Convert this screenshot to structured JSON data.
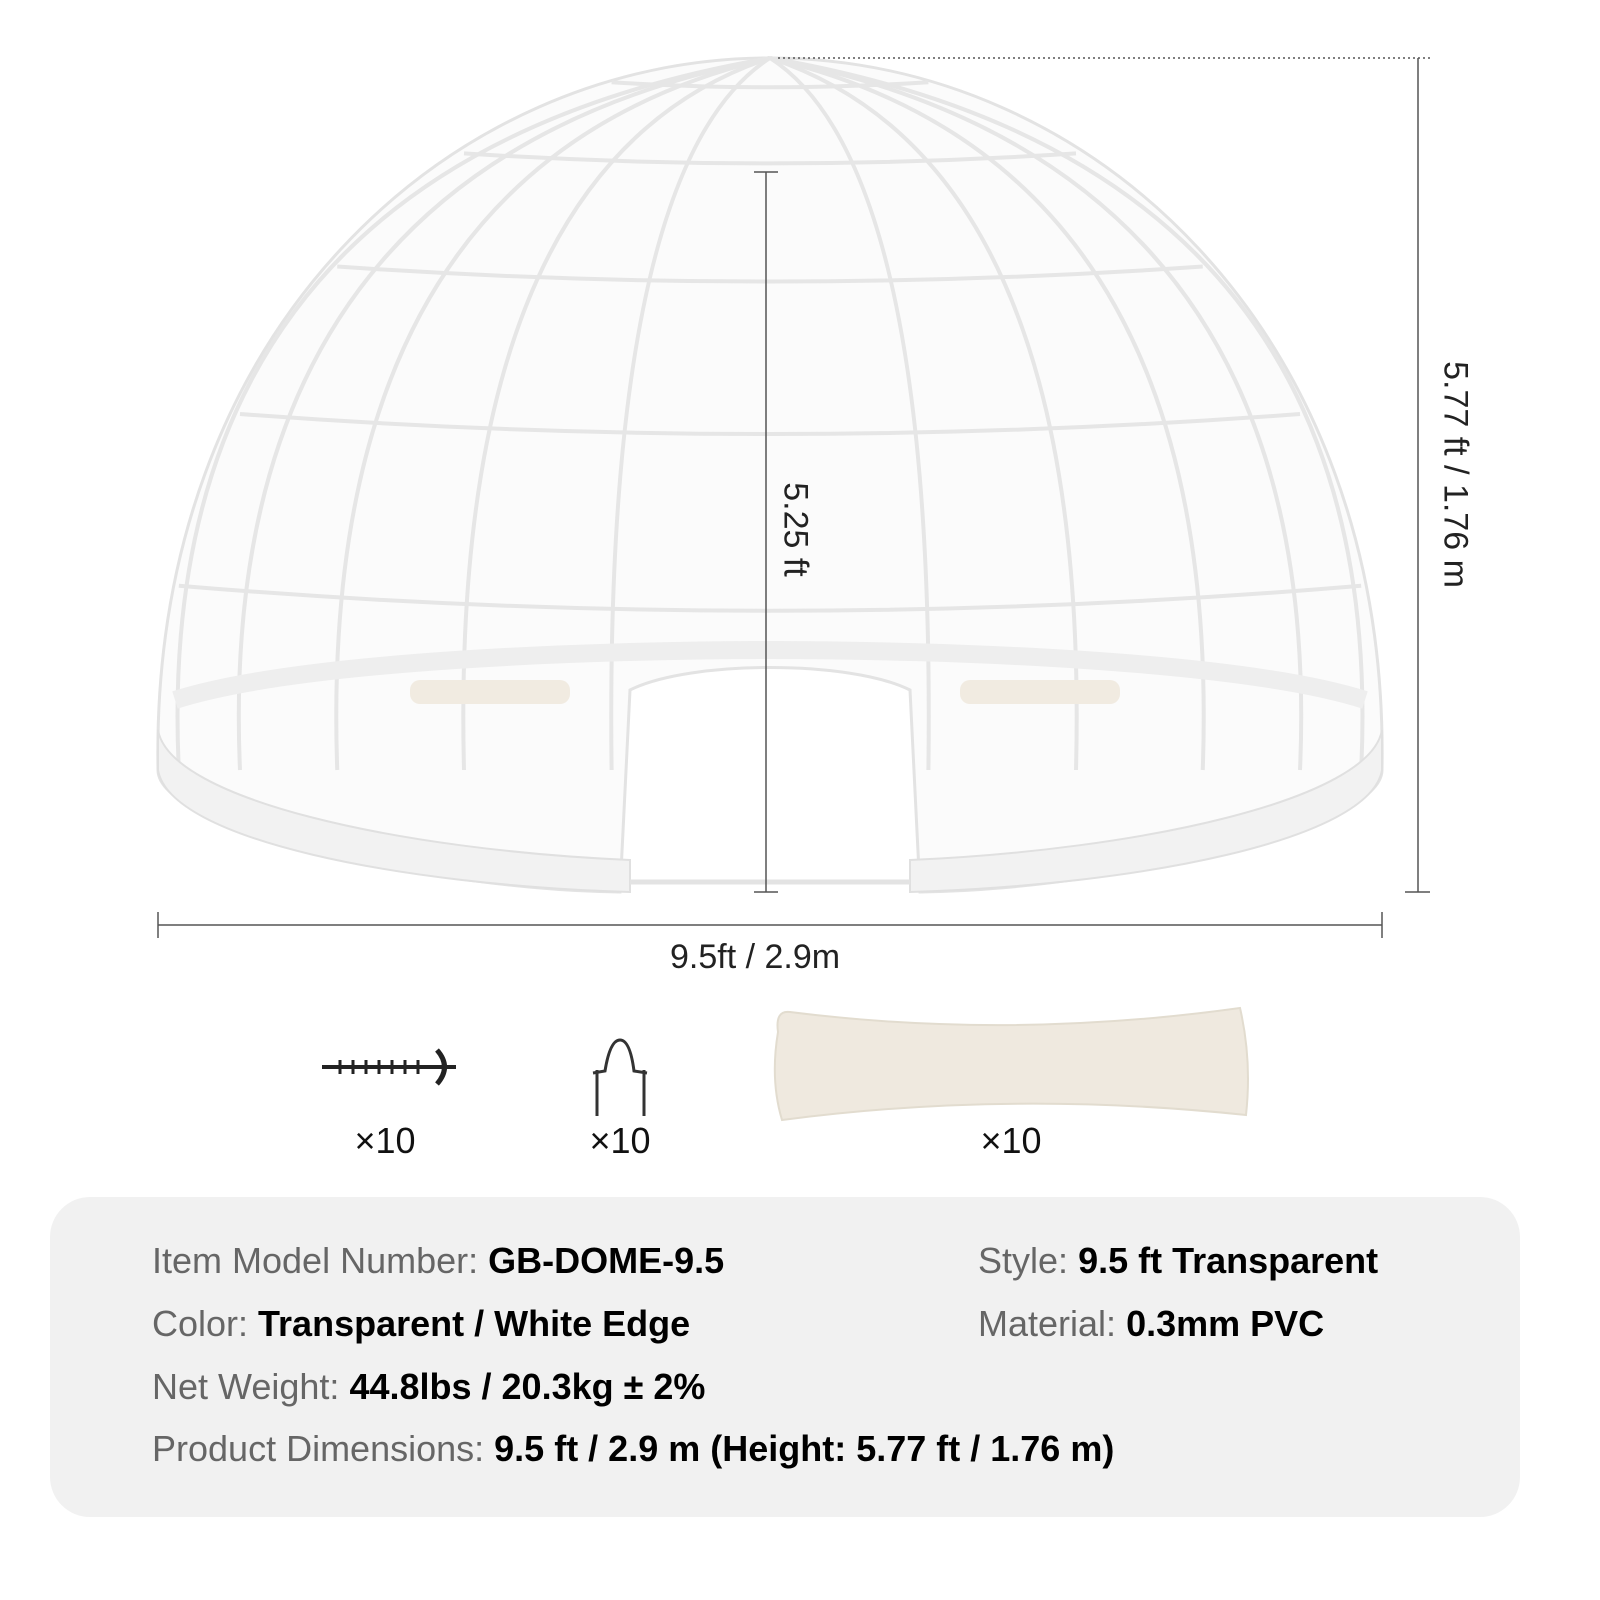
{
  "dimensions": {
    "width": "9.5ft / 2.9m",
    "height_total": "5.77 ft / 1.76 m",
    "height_door": "5.25 ft"
  },
  "accessories": [
    {
      "icon": "ground-screw-stake-icon",
      "qty": "×10"
    },
    {
      "icon": "u-shaped-stake-icon",
      "qty": "×10"
    },
    {
      "icon": "sandbag-icon",
      "qty": "×10"
    }
  ],
  "specs": {
    "model": {
      "label": "Item Model Number:",
      "value": "GB-DOME-9.5"
    },
    "style": {
      "label": "Style:",
      "value": "9.5 ft Transparent"
    },
    "color": {
      "label": "Color:",
      "value": "Transparent / White Edge"
    },
    "material": {
      "label": "Material:",
      "value": "0.3mm PVC"
    },
    "weight": {
      "label": "Net Weight:",
      "value": "44.8lbs / 20.3kg ± 2%"
    },
    "dims": {
      "label": "Product Dimensions:",
      "value": "9.5 ft / 2.9 m (Height: 5.77 ft / 1.76 m)"
    }
  },
  "colors": {
    "spec_bg": "#f1f1f1",
    "label": "#666666",
    "sandbag": "#efe9df",
    "frame": "#e2e2e2"
  }
}
